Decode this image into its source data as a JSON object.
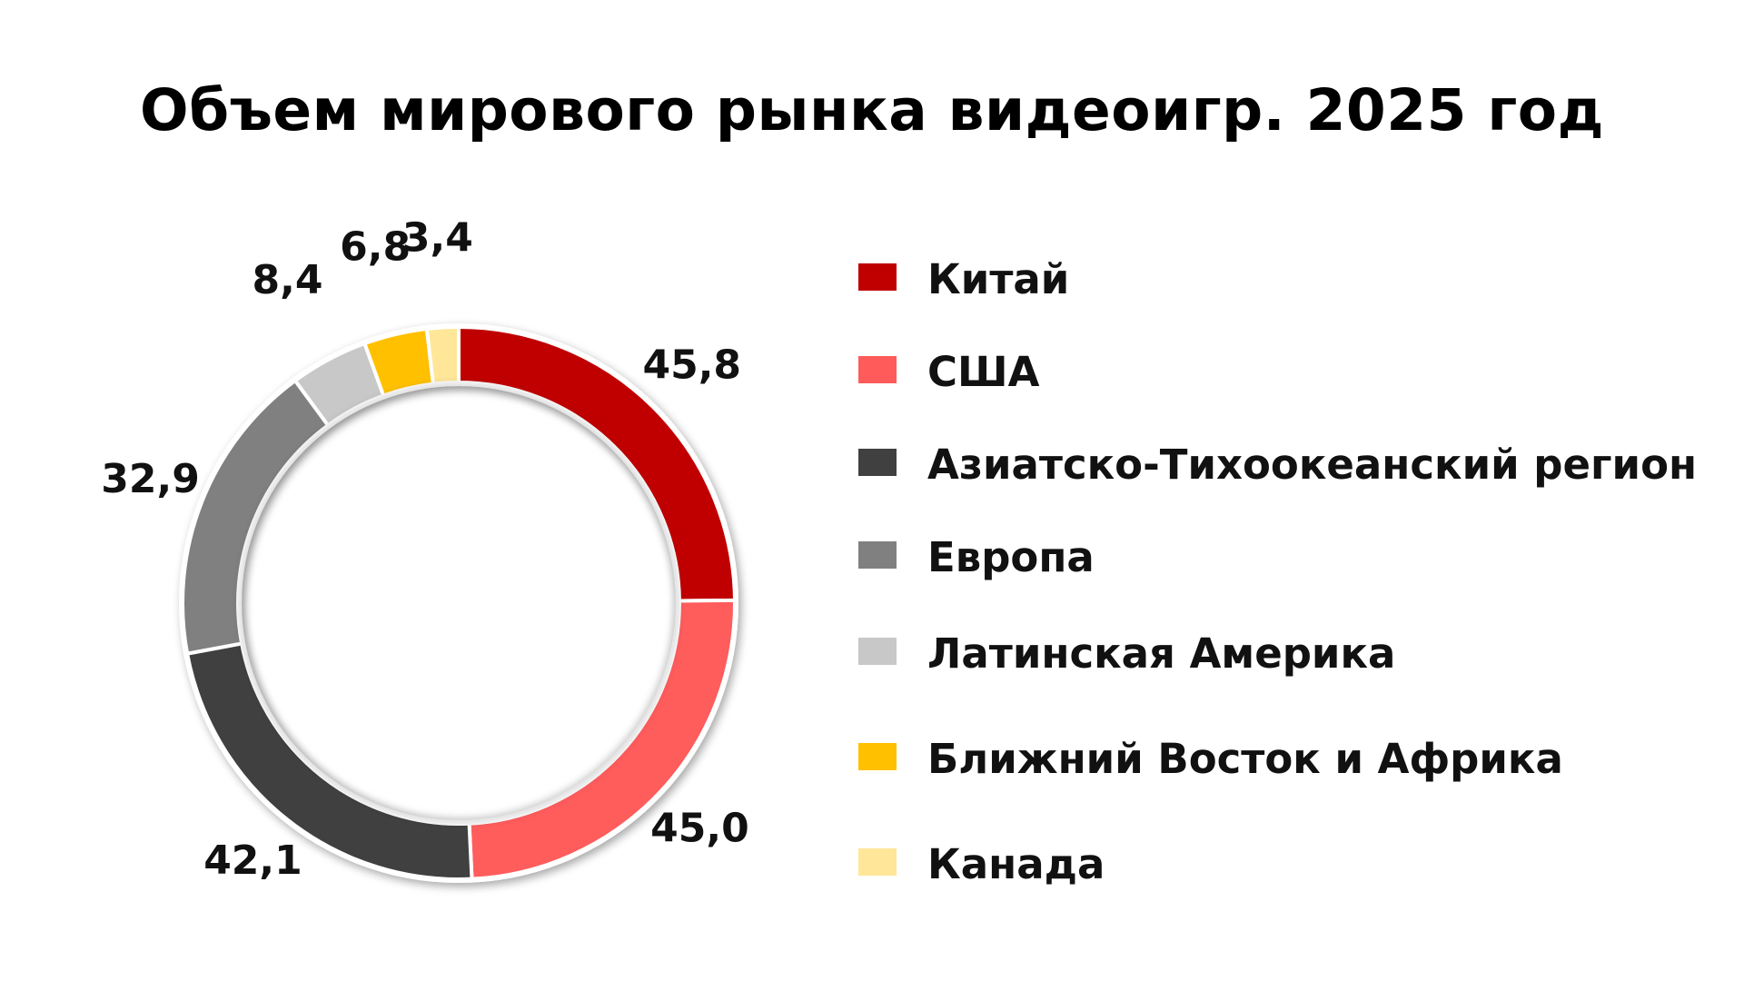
{
  "chart_data": {
    "type": "pie",
    "title": "Объем мирового рынка видеоигр. 2025 год",
    "categories": [
      "Китай",
      "США",
      "Азиатско-Тихоокеанский регион",
      "Европа",
      "Латинская Америка",
      "Ближний Восток и Африка",
      "Канада"
    ],
    "values": [
      45.8,
      45.0,
      42.1,
      32.9,
      8.4,
      6.8,
      3.4
    ],
    "value_labels": [
      "45,8",
      "45,0",
      "42,1",
      "32,9",
      "8,4",
      "6,8",
      "3,4"
    ],
    "colors": [
      "#C00000",
      "#FF5B5B",
      "#404040",
      "#808080",
      "#C8C8C8",
      "#FFC000",
      "#FFE699"
    ],
    "legend_position": "right"
  }
}
